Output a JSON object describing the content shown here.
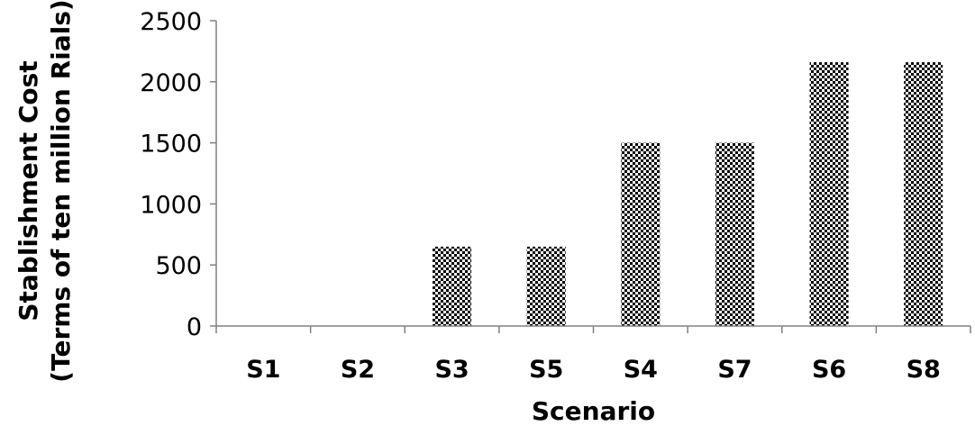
{
  "chart_data": {
    "type": "bar",
    "categories": [
      "S1",
      "S2",
      "S3",
      "S5",
      "S4",
      "S7",
      "S6",
      "S8"
    ],
    "values": [
      0,
      0,
      650,
      650,
      1500,
      1500,
      2160,
      2160
    ],
    "title": "",
    "xlabel": "Scenario",
    "ylabel_line1": "Stablishment Cost",
    "ylabel_line2": "(Terms of ten million Rials)",
    "ylim": [
      0,
      2500
    ],
    "yticks": [
      0,
      500,
      1000,
      1500,
      2000,
      2500
    ],
    "grid": false,
    "legend": "none",
    "bar_pattern": "checkerboard",
    "colors": {
      "bar_fill": "#000000",
      "bar_background": "#ffffff",
      "axis": "#808080",
      "text": "#000000"
    }
  }
}
